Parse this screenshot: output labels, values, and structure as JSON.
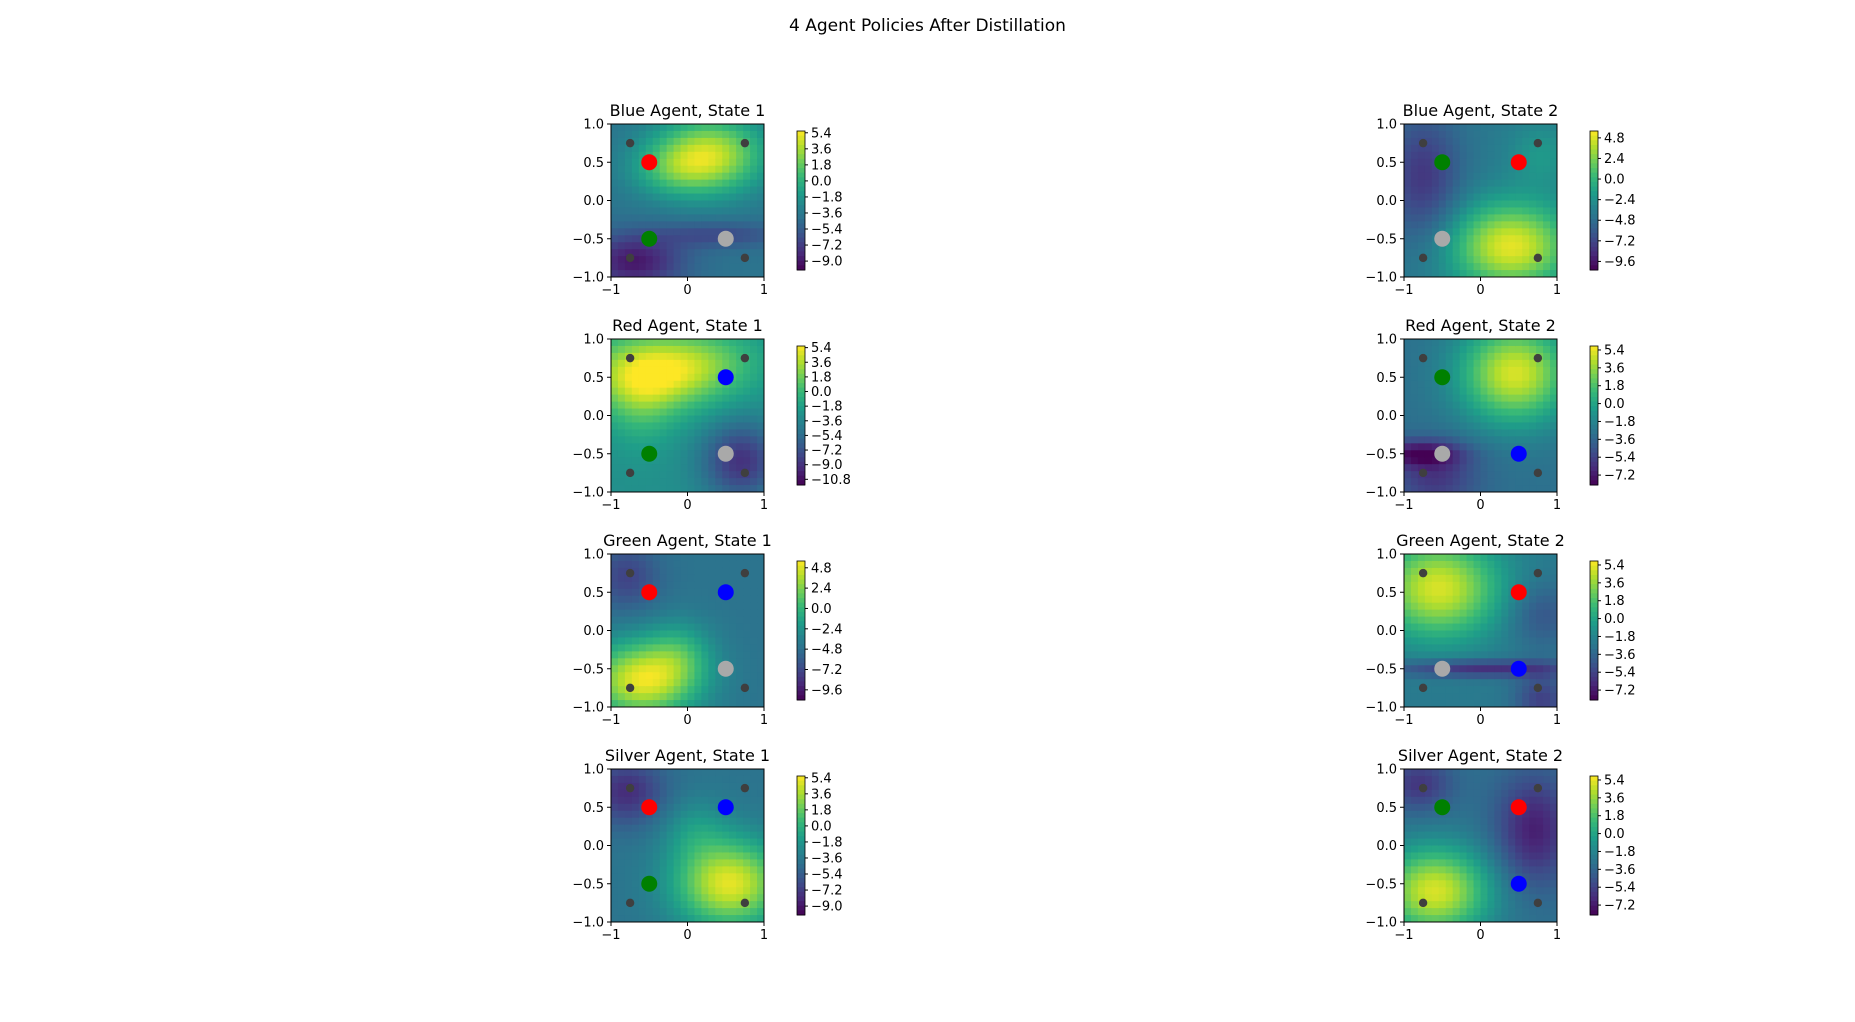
{
  "figure": {
    "title": "4 Agent Policies After Distillation"
  },
  "colors": {
    "blue": "#0000ff",
    "red": "#ff0000",
    "green": "#008000",
    "silver": "#a9a9a9",
    "corner": "#3f3f3f"
  },
  "chart_data": [
    {
      "type": "heatmap",
      "title": "Blue Agent, State 1",
      "xlim": [
        -1,
        1
      ],
      "ylim": [
        -1,
        1
      ],
      "xticks": [
        "−1",
        "0",
        "1"
      ],
      "yticks": [
        "1.0",
        "0.5",
        "0.0",
        "−0.5",
        "−1.0"
      ],
      "colorbar": {
        "ticks": [
          "5.4",
          "3.6",
          "1.8",
          "0.0",
          "−1.8",
          "−3.6",
          "−5.4",
          "−7.2",
          "−9.0"
        ],
        "min": -10.0,
        "max": 5.6
      },
      "agents": [
        {
          "color": "red",
          "x": -0.5,
          "y": 0.5
        },
        {
          "color": "green",
          "x": -0.5,
          "y": -0.5
        },
        {
          "color": "silver",
          "x": 0.5,
          "y": -0.5
        }
      ],
      "corners": [
        {
          "x": -0.75,
          "y": 0.75
        },
        {
          "x": 0.75,
          "y": 0.75
        },
        {
          "x": -0.75,
          "y": -0.75
        },
        {
          "x": 0.75,
          "y": -0.75
        }
      ],
      "field": {
        "base": -4,
        "bumps": [
          {
            "x": 0.3,
            "y": 0.6,
            "sx": 0.5,
            "sy": 0.35,
            "a": 8
          },
          {
            "x": -0.2,
            "y": 0.4,
            "sx": 0.4,
            "sy": 0.25,
            "a": 3
          },
          {
            "x": -0.7,
            "y": -0.8,
            "sx": 0.45,
            "sy": 0.25,
            "a": -5
          },
          {
            "x": 0.4,
            "y": -0.45,
            "sx": 0.6,
            "sy": 0.12,
            "a": -2.5
          }
        ]
      }
    },
    {
      "type": "heatmap",
      "title": "Blue Agent, State 2",
      "xlim": [
        -1,
        1
      ],
      "ylim": [
        -1,
        1
      ],
      "xticks": [
        "−1",
        "0",
        "1"
      ],
      "yticks": [
        "1.0",
        "0.5",
        "0.0",
        "−0.5",
        "−1.0"
      ],
      "colorbar": {
        "ticks": [
          "4.8",
          "2.4",
          "0.0",
          "−2.4",
          "−4.8",
          "−7.2",
          "−9.6"
        ],
        "min": -10.6,
        "max": 5.6
      },
      "agents": [
        {
          "color": "green",
          "x": -0.5,
          "y": 0.5
        },
        {
          "color": "red",
          "x": 0.5,
          "y": 0.5
        },
        {
          "color": "silver",
          "x": -0.5,
          "y": -0.5
        }
      ],
      "corners": [
        {
          "x": -0.75,
          "y": 0.75
        },
        {
          "x": 0.75,
          "y": 0.75
        },
        {
          "x": -0.75,
          "y": -0.75
        },
        {
          "x": 0.75,
          "y": -0.75
        }
      ],
      "field": {
        "base": -4,
        "bumps": [
          {
            "x": 0.4,
            "y": -0.6,
            "sx": 0.55,
            "sy": 0.4,
            "a": 9
          },
          {
            "x": -0.75,
            "y": 0.3,
            "sx": 0.35,
            "sy": 0.6,
            "a": -4
          },
          {
            "x": 0.8,
            "y": 0.6,
            "sx": 0.3,
            "sy": 0.3,
            "a": 2
          }
        ]
      }
    },
    {
      "type": "heatmap",
      "title": "Red Agent, State 1",
      "xlim": [
        -1,
        1
      ],
      "ylim": [
        -1,
        1
      ],
      "xticks": [
        "−1",
        "0",
        "1"
      ],
      "yticks": [
        "1.0",
        "0.5",
        "0.0",
        "−0.5",
        "−1.0"
      ],
      "colorbar": {
        "ticks": [
          "5.4",
          "3.6",
          "1.8",
          "0.0",
          "−1.8",
          "−3.6",
          "−5.4",
          "−7.2",
          "−9.0",
          "−10.8"
        ],
        "min": -11.5,
        "max": 5.6
      },
      "agents": [
        {
          "color": "blue",
          "x": 0.5,
          "y": 0.5
        },
        {
          "color": "green",
          "x": -0.5,
          "y": -0.5
        },
        {
          "color": "silver",
          "x": 0.5,
          "y": -0.5
        }
      ],
      "corners": [
        {
          "x": -0.75,
          "y": 0.75
        },
        {
          "x": 0.75,
          "y": 0.75
        },
        {
          "x": -0.75,
          "y": -0.75
        },
        {
          "x": 0.75,
          "y": -0.75
        }
      ],
      "field": {
        "base": -3,
        "bumps": [
          {
            "x": -0.5,
            "y": 0.55,
            "sx": 0.6,
            "sy": 0.35,
            "a": 8
          },
          {
            "x": 0.3,
            "y": 0.7,
            "sx": 0.5,
            "sy": 0.3,
            "a": 3
          },
          {
            "x": 0.7,
            "y": -0.6,
            "sx": 0.35,
            "sy": 0.35,
            "a": -6
          },
          {
            "x": -0.6,
            "y": 0.1,
            "sx": 0.3,
            "sy": 0.4,
            "a": 2
          }
        ]
      }
    },
    {
      "type": "heatmap",
      "title": "Red Agent, State 2",
      "xlim": [
        -1,
        1
      ],
      "ylim": [
        -1,
        1
      ],
      "xticks": [
        "−1",
        "0",
        "1"
      ],
      "yticks": [
        "1.0",
        "0.5",
        "0.0",
        "−0.5",
        "−1.0"
      ],
      "colorbar": {
        "ticks": [
          "5.4",
          "3.6",
          "1.8",
          "0.0",
          "−1.8",
          "−3.6",
          "−5.4",
          "−7.2"
        ],
        "min": -8.2,
        "max": 5.8
      },
      "agents": [
        {
          "color": "green",
          "x": -0.5,
          "y": 0.5
        },
        {
          "color": "silver",
          "x": -0.5,
          "y": -0.5
        },
        {
          "color": "blue",
          "x": 0.5,
          "y": -0.5
        }
      ],
      "corners": [
        {
          "x": -0.75,
          "y": 0.75
        },
        {
          "x": 0.75,
          "y": 0.75
        },
        {
          "x": -0.75,
          "y": -0.75
        },
        {
          "x": 0.75,
          "y": -0.75
        }
      ],
      "field": {
        "base": -3,
        "bumps": [
          {
            "x": 0.45,
            "y": 0.55,
            "sx": 0.5,
            "sy": 0.45,
            "a": 8
          },
          {
            "x": -0.8,
            "y": -0.5,
            "sx": 0.4,
            "sy": 0.12,
            "a": -4
          },
          {
            "x": -0.6,
            "y": -0.8,
            "sx": 0.4,
            "sy": 0.3,
            "a": -3
          }
        ]
      }
    },
    {
      "type": "heatmap",
      "title": "Green Agent, State 1",
      "xlim": [
        -1,
        1
      ],
      "ylim": [
        -1,
        1
      ],
      "xticks": [
        "−1",
        "0",
        "1"
      ],
      "yticks": [
        "1.0",
        "0.5",
        "0.0",
        "−0.5",
        "−1.0"
      ],
      "colorbar": {
        "ticks": [
          "4.8",
          "2.4",
          "0.0",
          "−2.4",
          "−4.8",
          "−7.2",
          "−9.6"
        ],
        "min": -10.8,
        "max": 5.6
      },
      "agents": [
        {
          "color": "red",
          "x": -0.5,
          "y": 0.5
        },
        {
          "color": "blue",
          "x": 0.5,
          "y": 0.5
        },
        {
          "color": "silver",
          "x": 0.5,
          "y": -0.5
        }
      ],
      "corners": [
        {
          "x": -0.75,
          "y": 0.75
        },
        {
          "x": 0.75,
          "y": 0.75
        },
        {
          "x": -0.75,
          "y": -0.75
        },
        {
          "x": 0.75,
          "y": -0.75
        }
      ],
      "field": {
        "base": -4.5,
        "bumps": [
          {
            "x": -0.6,
            "y": -0.65,
            "sx": 0.5,
            "sy": 0.35,
            "a": 9.5
          },
          {
            "x": -0.1,
            "y": -0.3,
            "sx": 0.3,
            "sy": 0.3,
            "a": 3
          },
          {
            "x": -0.8,
            "y": 0.7,
            "sx": 0.3,
            "sy": 0.3,
            "a": -3
          }
        ]
      }
    },
    {
      "type": "heatmap",
      "title": "Green Agent, State 2",
      "xlim": [
        -1,
        1
      ],
      "ylim": [
        -1,
        1
      ],
      "xticks": [
        "−1",
        "0",
        "1"
      ],
      "yticks": [
        "1.0",
        "0.5",
        "0.0",
        "−0.5",
        "−1.0"
      ],
      "colorbar": {
        "ticks": [
          "5.4",
          "3.6",
          "1.8",
          "0.0",
          "−1.8",
          "−3.6",
          "−5.4",
          "−7.2"
        ],
        "min": -8.2,
        "max": 5.8
      },
      "agents": [
        {
          "color": "red",
          "x": 0.5,
          "y": 0.5
        },
        {
          "color": "silver",
          "x": -0.5,
          "y": -0.5
        },
        {
          "color": "blue",
          "x": 0.5,
          "y": -0.5
        }
      ],
      "corners": [
        {
          "x": -0.75,
          "y": 0.75
        },
        {
          "x": 0.75,
          "y": 0.75
        },
        {
          "x": -0.75,
          "y": -0.75
        },
        {
          "x": 0.75,
          "y": -0.75
        }
      ],
      "field": {
        "base": -2.5,
        "bumps": [
          {
            "x": -0.55,
            "y": 0.55,
            "sx": 0.55,
            "sy": 0.45,
            "a": 7.5
          },
          {
            "x": 0.0,
            "y": -0.5,
            "sx": 0.8,
            "sy": 0.08,
            "a": -4
          },
          {
            "x": 0.8,
            "y": -0.9,
            "sx": 0.25,
            "sy": 0.25,
            "a": -3
          },
          {
            "x": 0.8,
            "y": 0.2,
            "sx": 0.3,
            "sy": 0.3,
            "a": -2
          }
        ]
      }
    },
    {
      "type": "heatmap",
      "title": "Silver Agent, State 1",
      "xlim": [
        -1,
        1
      ],
      "ylim": [
        -1,
        1
      ],
      "xticks": [
        "−1",
        "0",
        "1"
      ],
      "yticks": [
        "1.0",
        "0.5",
        "0.0",
        "−0.5",
        "−1.0"
      ],
      "colorbar": {
        "ticks": [
          "5.4",
          "3.6",
          "1.8",
          "0.0",
          "−1.8",
          "−3.6",
          "−5.4",
          "−7.2",
          "−9.0"
        ],
        "min": -10.0,
        "max": 5.6
      },
      "agents": [
        {
          "color": "red",
          "x": -0.5,
          "y": 0.5
        },
        {
          "color": "blue",
          "x": 0.5,
          "y": 0.5
        },
        {
          "color": "green",
          "x": -0.5,
          "y": -0.5
        }
      ],
      "corners": [
        {
          "x": -0.75,
          "y": 0.75
        },
        {
          "x": 0.75,
          "y": 0.75
        },
        {
          "x": -0.75,
          "y": -0.75
        },
        {
          "x": 0.75,
          "y": -0.75
        }
      ],
      "field": {
        "base": -4,
        "bumps": [
          {
            "x": 0.55,
            "y": -0.5,
            "sx": 0.5,
            "sy": 0.4,
            "a": 9
          },
          {
            "x": -0.8,
            "y": 0.7,
            "sx": 0.35,
            "sy": 0.3,
            "a": -4
          },
          {
            "x": 0.1,
            "y": 0.2,
            "sx": 0.3,
            "sy": 0.3,
            "a": 2
          }
        ]
      }
    },
    {
      "type": "heatmap",
      "title": "Silver Agent, State 2",
      "xlim": [
        -1,
        1
      ],
      "ylim": [
        -1,
        1
      ],
      "xticks": [
        "−1",
        "0",
        "1"
      ],
      "yticks": [
        "1.0",
        "0.5",
        "0.0",
        "−0.5",
        "−1.0"
      ],
      "colorbar": {
        "ticks": [
          "5.4",
          "3.6",
          "1.8",
          "0.0",
          "−1.8",
          "−3.6",
          "−5.4",
          "−7.2"
        ],
        "min": -8.2,
        "max": 5.8
      },
      "agents": [
        {
          "color": "green",
          "x": -0.5,
          "y": 0.5
        },
        {
          "color": "red",
          "x": 0.5,
          "y": 0.5
        },
        {
          "color": "blue",
          "x": 0.5,
          "y": -0.5
        }
      ],
      "corners": [
        {
          "x": -0.75,
          "y": 0.75
        },
        {
          "x": 0.75,
          "y": 0.75
        },
        {
          "x": -0.75,
          "y": -0.75
        },
        {
          "x": 0.75,
          "y": -0.75
        }
      ],
      "field": {
        "base": -3,
        "bumps": [
          {
            "x": -0.6,
            "y": -0.6,
            "sx": 0.5,
            "sy": 0.4,
            "a": 8
          },
          {
            "x": 0.7,
            "y": 0.2,
            "sx": 0.35,
            "sy": 0.5,
            "a": -4
          },
          {
            "x": -0.8,
            "y": 0.8,
            "sx": 0.3,
            "sy": 0.25,
            "a": -3
          }
        ]
      }
    }
  ]
}
